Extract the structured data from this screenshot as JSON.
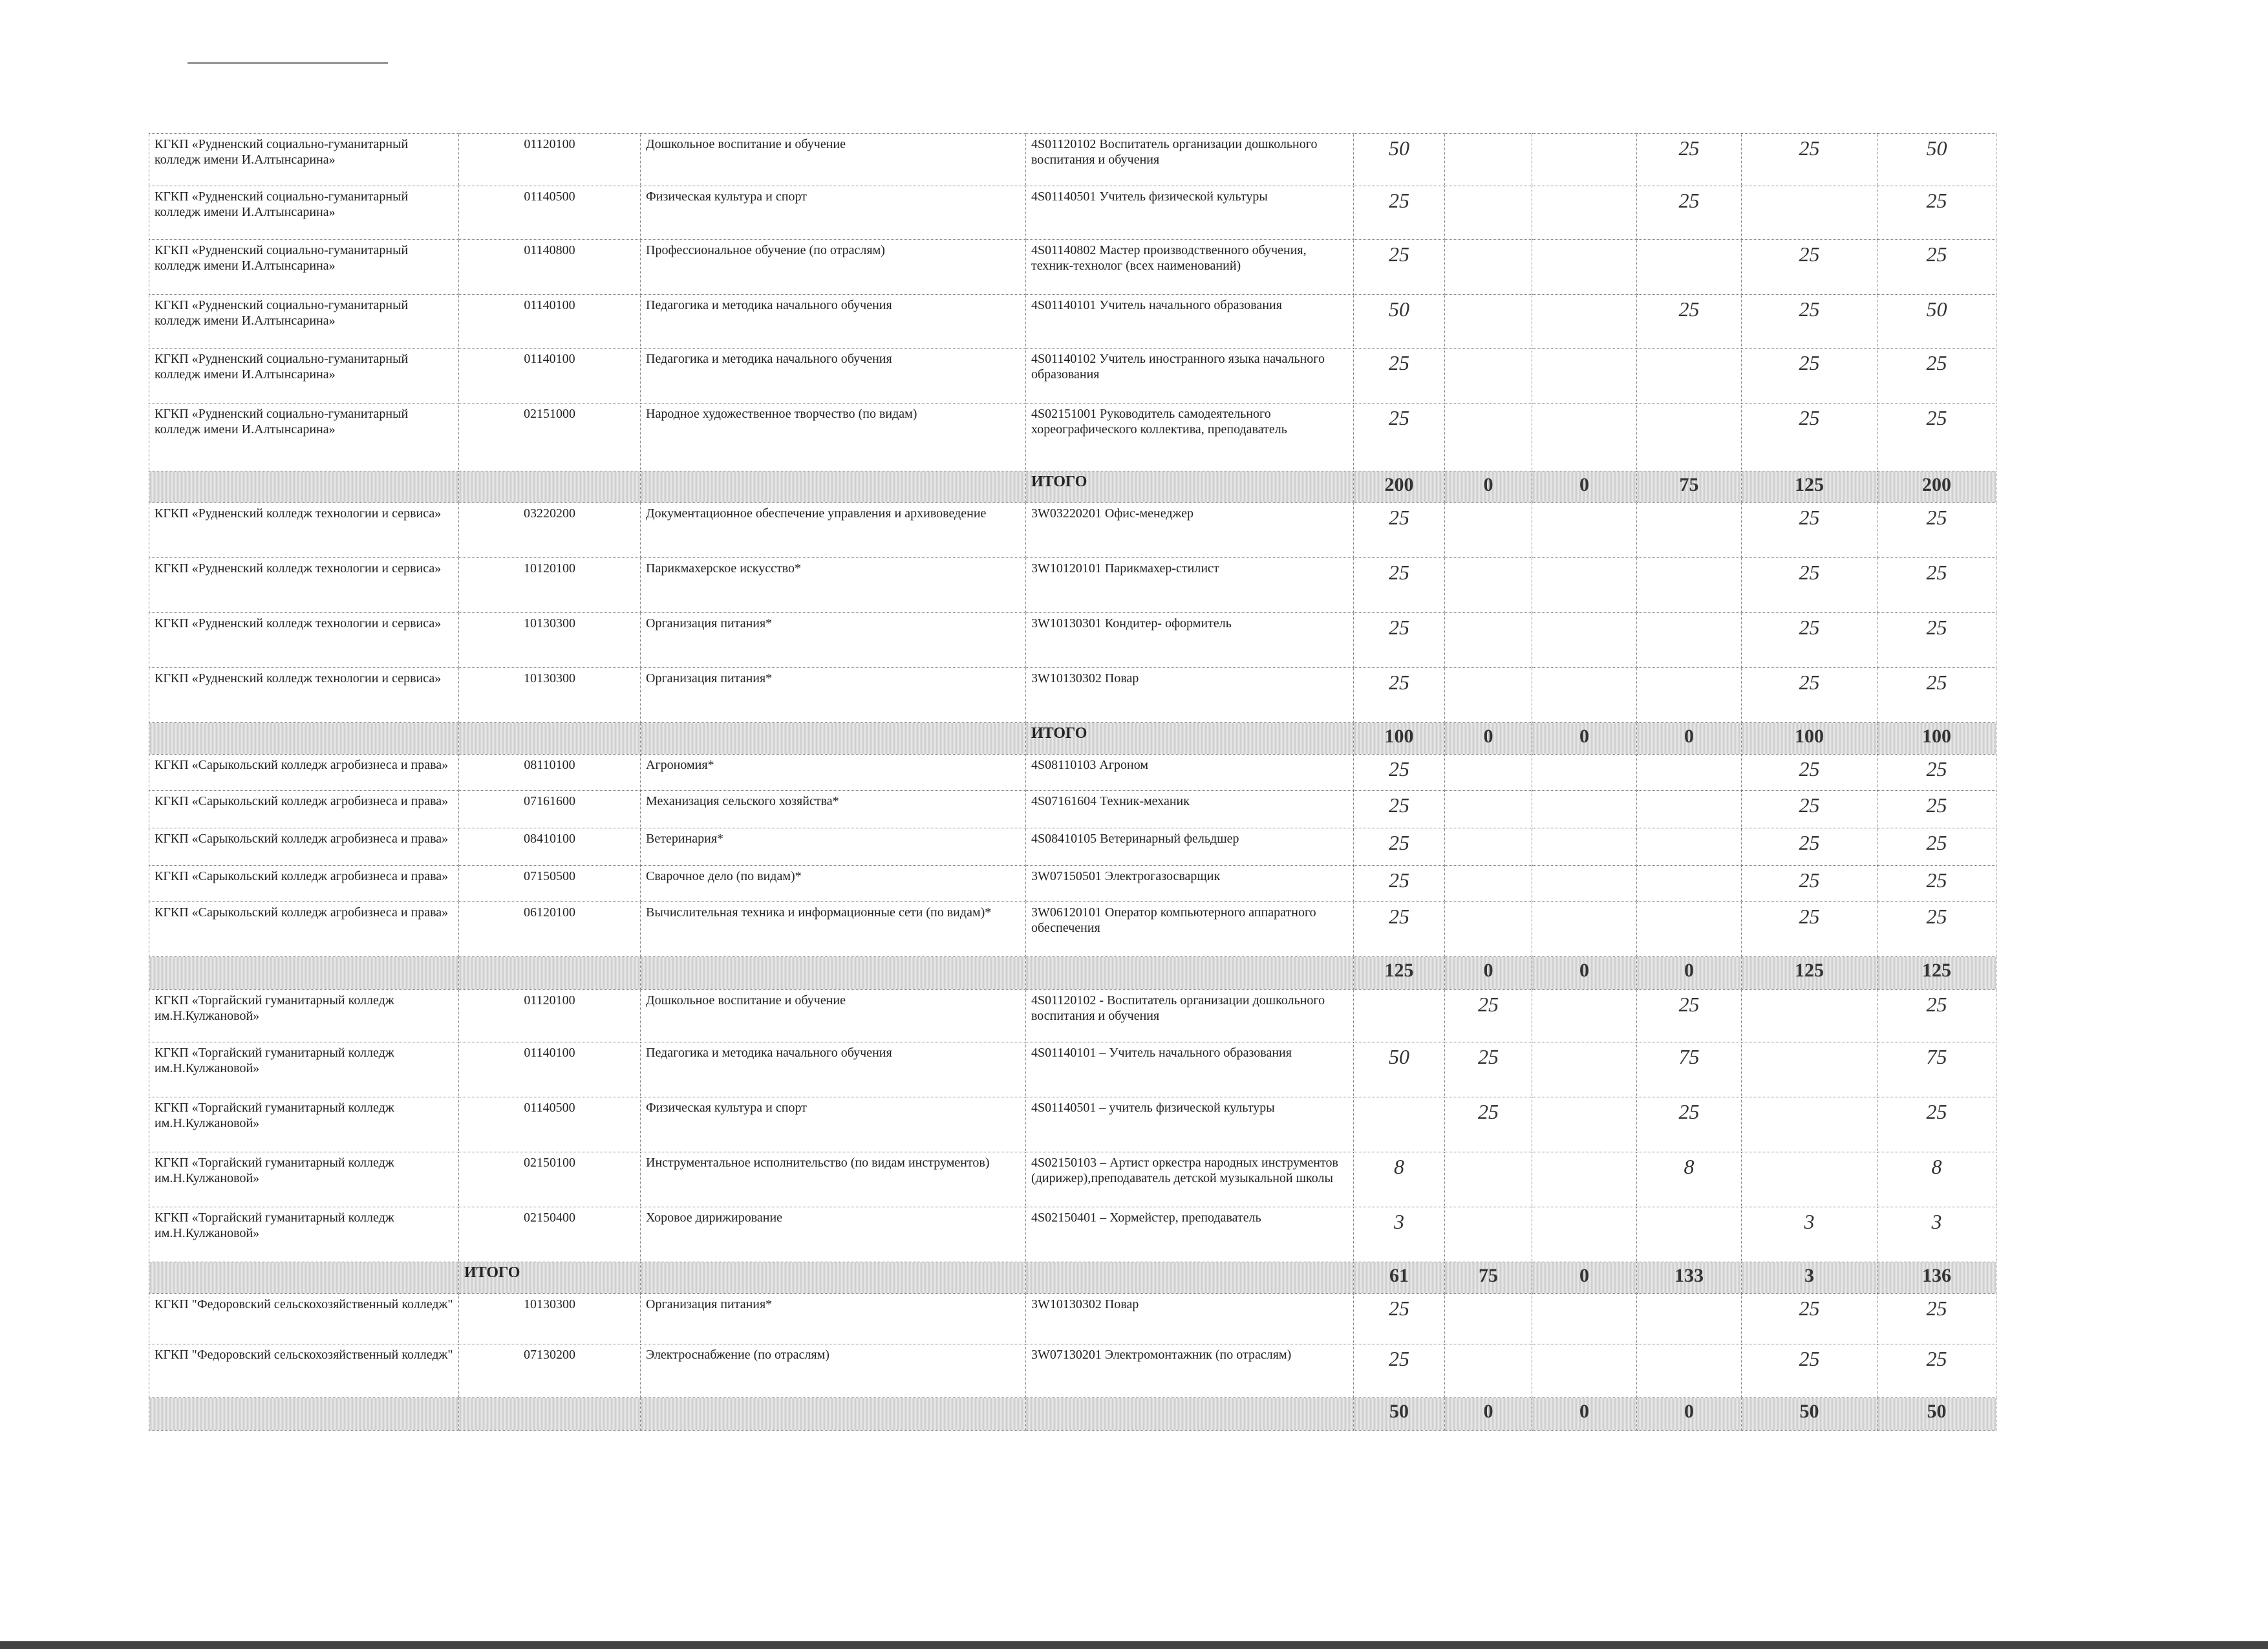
{
  "table": {
    "rows": [
      [
        "КГКП «Рудненский социально-гуманитарный колледж имени И.Алтынсарина»",
        "01120100",
        "Дошкольное воспитание и обучение",
        "4S01120102 Воспитатель организации дошкольного воспитания и обучения",
        50,
        null,
        null,
        25,
        25,
        50
      ],
      [
        "КГКП «Рудненский социально-гуманитарный колледж имени И.Алтынсарина»",
        "01140500",
        "Физическая культура и спорт",
        "4S01140501 Учитель физической культуры",
        25,
        null,
        null,
        25,
        null,
        25
      ],
      [
        "КГКП «Рудненский социально-гуманитарный колледж имени И.Алтынсарина»",
        "01140800",
        "Профессиональное обучение (по отраслям)",
        "4S01140802 Мастер производственного обучения, техник-технолог (всех наименований)",
        25,
        null,
        null,
        null,
        25,
        25
      ],
      [
        "КГКП «Рудненский социально-гуманитарный колледж имени И.Алтынсарина»",
        "01140100",
        "Педагогика и методика начального обучения",
        "4S01140101 Учитель начального образования",
        50,
        null,
        null,
        25,
        25,
        50
      ],
      [
        "КГКП «Рудненский социально-гуманитарный колледж имени И.Алтынсарина»",
        "01140100",
        "Педагогика и методика начального обучения",
        "4S01140102 Учитель иностранного языка начального образования",
        25,
        null,
        null,
        null,
        25,
        25
      ],
      [
        "КГКП «Рудненский социально-гуманитарный колледж имени И.Алтынсарина»",
        "02151000",
        "Народное художественное творчество (по видам)",
        "4S02151001 Руководитель самодеятельного хореографического коллектива, преподаватель",
        25,
        null,
        null,
        null,
        25,
        25
      ],
      [
        null,
        null,
        null,
        "ИТОГО",
        200,
        0,
        0,
        75,
        125,
        200
      ],
      [
        "КГКП «Рудненский колледж технологии и сервиса»",
        "03220200",
        "Документационное обеспечение управления и архивоведение",
        "3W03220201 Офис-менеджер",
        25,
        null,
        null,
        null,
        25,
        25
      ],
      [
        "КГКП «Рудненский колледж технологии и сервиса»",
        "10120100",
        "Парикмахерское искусство*",
        "3W10120101 Парикмахер-стилист",
        25,
        null,
        null,
        null,
        25,
        25
      ],
      [
        "КГКП «Рудненский колледж технологии и сервиса»",
        "10130300",
        "Организация питания*",
        "3W10130301 Кондитер- оформитель",
        25,
        null,
        null,
        null,
        25,
        25
      ],
      [
        "КГКП «Рудненский колледж технологии и сервиса»",
        "10130300",
        "Организация питания*",
        "3W10130302 Повар",
        25,
        null,
        null,
        null,
        25,
        25
      ],
      [
        null,
        null,
        null,
        "ИТОГО",
        100,
        0,
        0,
        0,
        100,
        100
      ],
      [
        "КГКП «Сарыкольский колледж агробизнеса и права»",
        "08110100",
        "Агрономия*",
        "4S08110103 Агроном",
        25,
        null,
        null,
        null,
        25,
        25
      ],
      [
        "КГКП «Сарыкольский колледж агробизнеса и права»",
        "07161600",
        "Механизация сельского хозяйства*",
        "4S07161604 Техник-механик",
        25,
        null,
        null,
        null,
        25,
        25
      ],
      [
        "КГКП «Сарыкольский колледж агробизнеса и права»",
        "08410100",
        "Ветеринария*",
        "4S08410105 Ветеринарный фельдшер",
        25,
        null,
        null,
        null,
        25,
        25
      ],
      [
        "КГКП «Сарыкольский колледж агробизнеса и права»",
        "07150500",
        "Сварочное дело (по видам)*",
        "3W07150501 Электрогазосварщик",
        25,
        null,
        null,
        null,
        25,
        25
      ],
      [
        "КГКП «Сарыкольский колледж агробизнеса и права»",
        "06120100",
        "Вычислительная техника и информационные сети (по видам)*",
        "3W06120101 Оператор компьютерного аппаратного обеспечения",
        25,
        null,
        null,
        null,
        25,
        25
      ],
      [
        null,
        null,
        null,
        null,
        125,
        0,
        0,
        0,
        125,
        125
      ],
      [
        "КГКП «Торгайский гуманитарный колледж им.Н.Кулжановой»",
        "01120100",
        "Дошкольное воспитание и обучение",
        "4S01120102 - Воспитатель организации дошкольного воспитания и обучения",
        null,
        25,
        null,
        25,
        null,
        25
      ],
      [
        "КГКП «Торгайский гуманитарный колледж им.Н.Кулжановой»",
        "01140100",
        "Педагогика и методика начального обучения",
        "4S01140101 – Учитель начального образования",
        50,
        25,
        null,
        75,
        null,
        75
      ],
      [
        "КГКП «Торгайский гуманитарный колледж им.Н.Кулжановой»",
        "01140500",
        "Физическая культура и спорт",
        "4S01140501 – учитель физической культуры",
        null,
        25,
        null,
        25,
        null,
        25
      ],
      [
        "КГКП «Торгайский гуманитарный колледж им.Н.Кулжановой»",
        "02150100",
        "Инструментальное исполнительство (по видам инструментов)",
        "4S02150103 – Артист оркестра народных инструментов (дирижер),преподаватель детской музыкальной школы",
        8,
        null,
        null,
        8,
        null,
        8
      ],
      [
        "КГКП «Торгайский гуманитарный колледж им.Н.Кулжановой»",
        "02150400",
        "Хоровое дирижирование",
        "4S02150401 – Хормейстер, преподаватель",
        3,
        null,
        null,
        null,
        3,
        3
      ],
      [
        null,
        "ИТОГО",
        null,
        null,
        61,
        75,
        0,
        133,
        3,
        136
      ],
      [
        "КГКП \"Федоровский сельскохозяйственный колледж\"",
        "10130300",
        "Организация питания*",
        "3W10130302 Повар",
        25,
        null,
        null,
        null,
        25,
        25
      ],
      [
        "КГКП \"Федоровский сельскохозяйственный колледж\"",
        "07130200",
        "Электроснабжение (по отраслям)",
        "3W07130201 Электромонтажник (по отраслям)",
        25,
        null,
        null,
        null,
        25,
        25
      ],
      [
        null,
        null,
        null,
        null,
        50,
        0,
        0,
        0,
        50,
        50
      ]
    ]
  }
}
